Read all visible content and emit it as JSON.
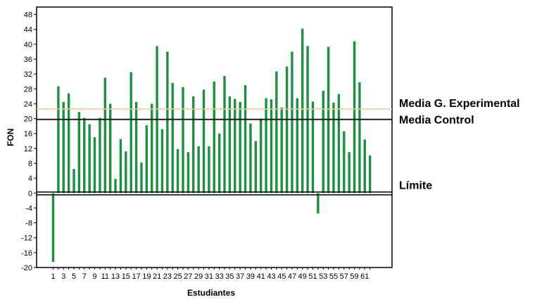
{
  "chart_data": {
    "type": "bar",
    "xlabel": "Estudiantes",
    "ylabel": "FON",
    "ylim": [
      -20,
      50
    ],
    "yticks": [
      48,
      44,
      40,
      36,
      32,
      28,
      24,
      20,
      16,
      12,
      8,
      4,
      0,
      -4,
      -8,
      -12,
      -16,
      -20
    ],
    "xtick_labels": [
      "1",
      "3",
      "5",
      "7",
      "9",
      "11",
      "13",
      "15",
      "17",
      "19",
      "21",
      "23",
      "25",
      "27",
      "29",
      "31",
      "33",
      "35",
      "37",
      "39",
      "41",
      "43",
      "45",
      "47",
      "49",
      "51",
      "53",
      "55",
      "57",
      "59",
      "61"
    ],
    "x": [
      1,
      2,
      3,
      4,
      5,
      6,
      7,
      8,
      9,
      10,
      11,
      12,
      13,
      14,
      15,
      16,
      17,
      18,
      19,
      20,
      21,
      22,
      23,
      24,
      25,
      26,
      27,
      28,
      29,
      30,
      31,
      32,
      33,
      34,
      35,
      36,
      37,
      38,
      39,
      40,
      41,
      42,
      43,
      44,
      45,
      46,
      47,
      48,
      49,
      50,
      51,
      52,
      53,
      54,
      55,
      56,
      57,
      58,
      59,
      60,
      61,
      62
    ],
    "values": [
      -18.5,
      28.7,
      24.5,
      26.8,
      6.5,
      21.8,
      20.2,
      18.5,
      15.0,
      20.2,
      31.0,
      24.0,
      3.8,
      14.5,
      11.2,
      32.5,
      24.5,
      8.2,
      18.2,
      24.0,
      39.5,
      17.2,
      38.0,
      29.6,
      11.8,
      28.5,
      11.0,
      26.0,
      12.6,
      27.8,
      12.6,
      30.0,
      16.0,
      31.5,
      26.0,
      25.3,
      24.5,
      29.0,
      18.7,
      14.0,
      20.0,
      25.5,
      25.2,
      32.7,
      23.0,
      34.0,
      38.0,
      25.5,
      44.2,
      39.5,
      24.6,
      -5.5,
      27.5,
      39.3,
      24.3,
      26.6,
      16.6,
      11.0,
      40.8,
      29.8,
      14.4,
      10.1
    ],
    "bar_color": "#1a9140",
    "grid": false,
    "reference_lines": [
      {
        "label": "Media G. Experimental",
        "value": 22.6,
        "color": "#f2c79a"
      },
      {
        "label": "Media Control",
        "value": 19.8,
        "color": "#000000"
      },
      {
        "label": "Límite",
        "value": 0,
        "color": "#000000"
      }
    ]
  }
}
